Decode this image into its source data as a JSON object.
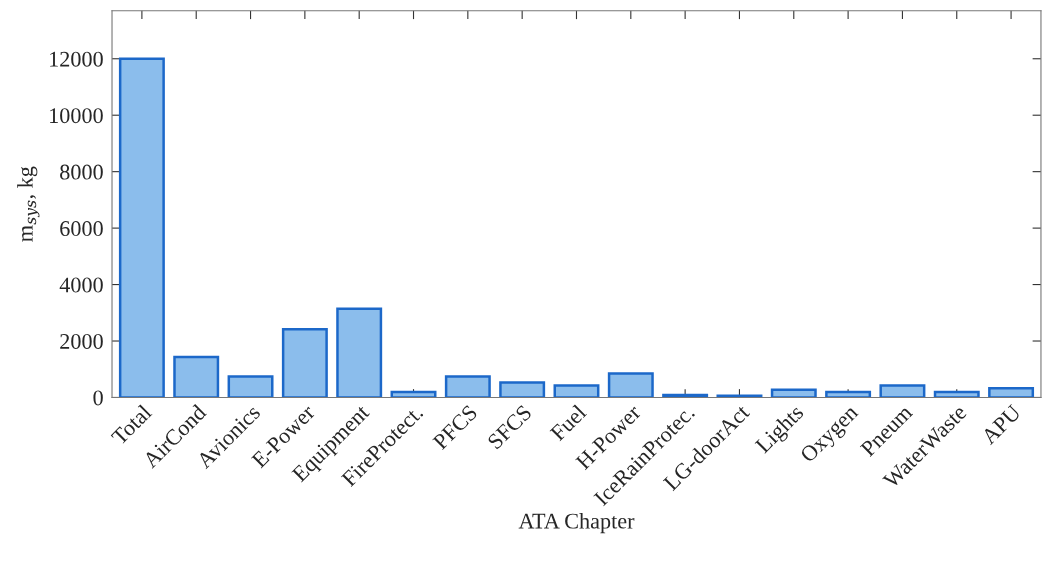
{
  "chart_data": {
    "type": "bar",
    "xlabel": "ATA Chapter",
    "ylabel": "m$_{sys}$, kg",
    "categories": [
      "Total",
      "AirCond",
      "Avionics",
      "E-Power",
      "Equipment",
      "FireProtect.",
      "PFCS",
      "SFCS",
      "Fuel",
      "H-Power",
      "IceRainProtec.",
      "LG-doorAct",
      "Lights",
      "Oxygen",
      "Pneum",
      "WaterWaste",
      "APU"
    ],
    "values": [
      12000,
      1430,
      740,
      2420,
      3140,
      190,
      740,
      530,
      425,
      850,
      85,
      60,
      270,
      190,
      425,
      190,
      330
    ],
    "color": "#8bbdec",
    "ylim": [
      0,
      13700
    ],
    "yticks": [
      0,
      2000,
      4000,
      6000,
      8000,
      10000,
      12000
    ],
    "grid": false
  }
}
